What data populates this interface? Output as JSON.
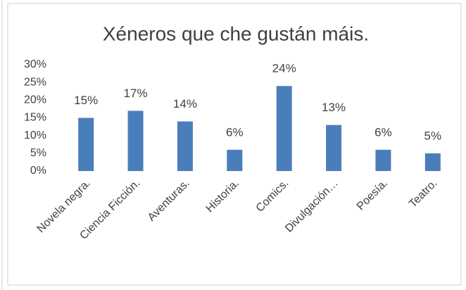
{
  "chart_data": {
    "type": "bar",
    "title": "Xéneros que che gustán máis.",
    "categories": [
      "Novela negra.",
      "Ciencia Ficción.",
      "Aventuras.",
      "Historia.",
      "Comics.",
      "Divulgación…",
      "Poesía.",
      "Teatro."
    ],
    "values": [
      15,
      17,
      14,
      6,
      24,
      13,
      6,
      5
    ],
    "value_labels": [
      "15%",
      "17%",
      "14%",
      "6%",
      "24%",
      "13%",
      "6%",
      "5%"
    ],
    "color": "#4a7ebb",
    "ylim": [
      0,
      30
    ],
    "yticks": [
      {
        "value": 0,
        "label": "0%"
      },
      {
        "value": 5,
        "label": "5%"
      },
      {
        "value": 10,
        "label": "10%"
      },
      {
        "value": 15,
        "label": "15%"
      },
      {
        "value": 20,
        "label": "20%"
      },
      {
        "value": 25,
        "label": "25%"
      },
      {
        "value": 30,
        "label": "30%"
      }
    ],
    "grid": false
  }
}
